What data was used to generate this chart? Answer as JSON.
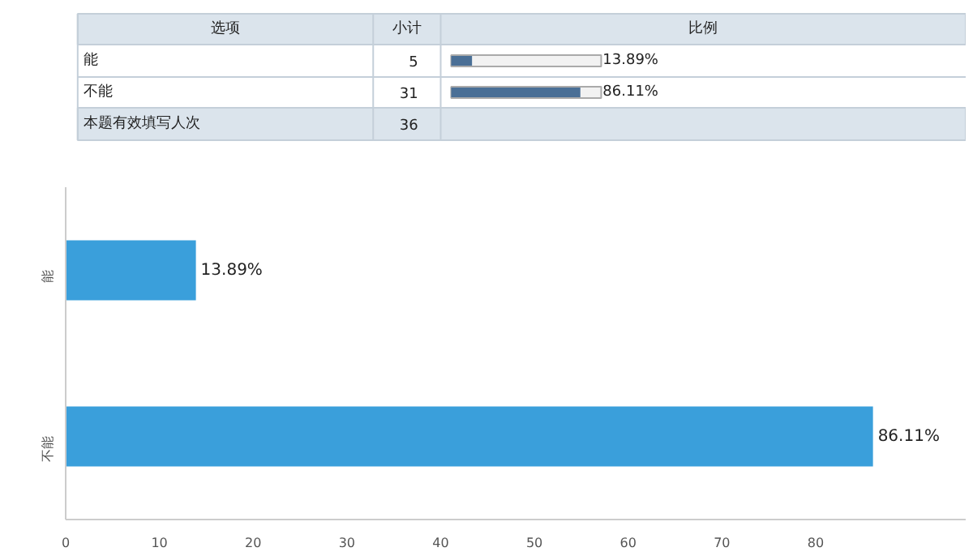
{
  "chart_data": [
    {
      "type": "bar",
      "orientation": "horizontal",
      "categories": [
        "能",
        "不能"
      ],
      "values": [
        13.89,
        86.11
      ],
      "value_labels": [
        "13.89%",
        "86.11%"
      ],
      "color": "#4a6f96",
      "xlim": [
        0,
        100
      ],
      "tick_labels": false,
      "annotations": [
        "选项",
        "小计",
        "比例",
        "5",
        "31",
        "本题有效填写人次",
        "36"
      ]
    },
    {
      "type": "bar",
      "orientation": "horizontal",
      "categories": [
        "能",
        "不能"
      ],
      "values": [
        13.89,
        86.11
      ],
      "value_labels": [
        "13.89%",
        "86.11%"
      ],
      "color": "#3a9fdb",
      "xlim": [
        0,
        96
      ],
      "xticks": [
        0,
        10,
        20,
        30,
        40,
        50,
        60,
        70,
        80
      ],
      "grid": false
    }
  ]
}
